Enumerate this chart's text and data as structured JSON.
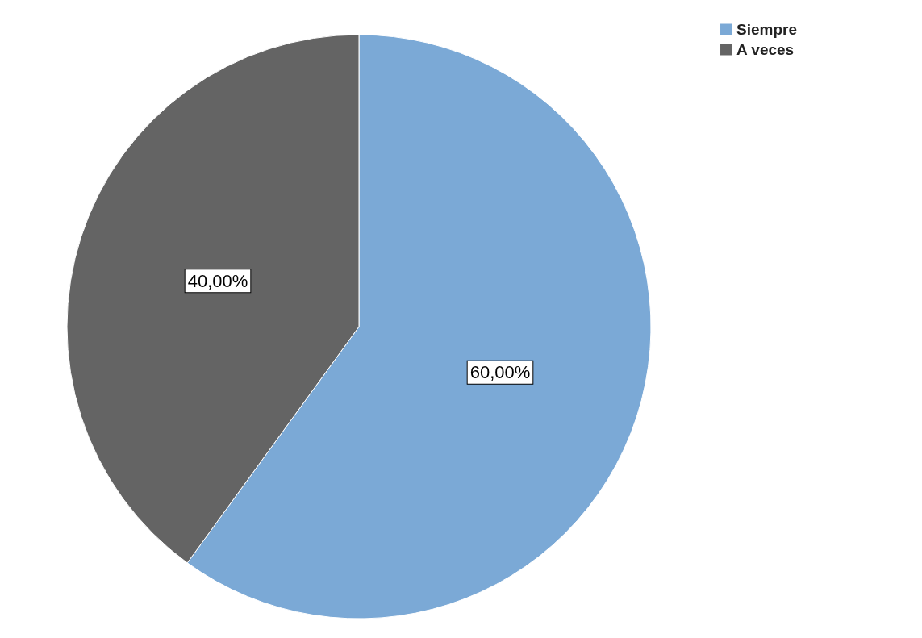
{
  "chart_data": {
    "type": "pie",
    "categories": [
      "Siempre",
      "A veces"
    ],
    "values": [
      60,
      40
    ],
    "colors": [
      "#7ba9d6",
      "#646464"
    ],
    "value_labels": [
      "60,00%",
      "40,00%"
    ],
    "legend": "top right"
  }
}
